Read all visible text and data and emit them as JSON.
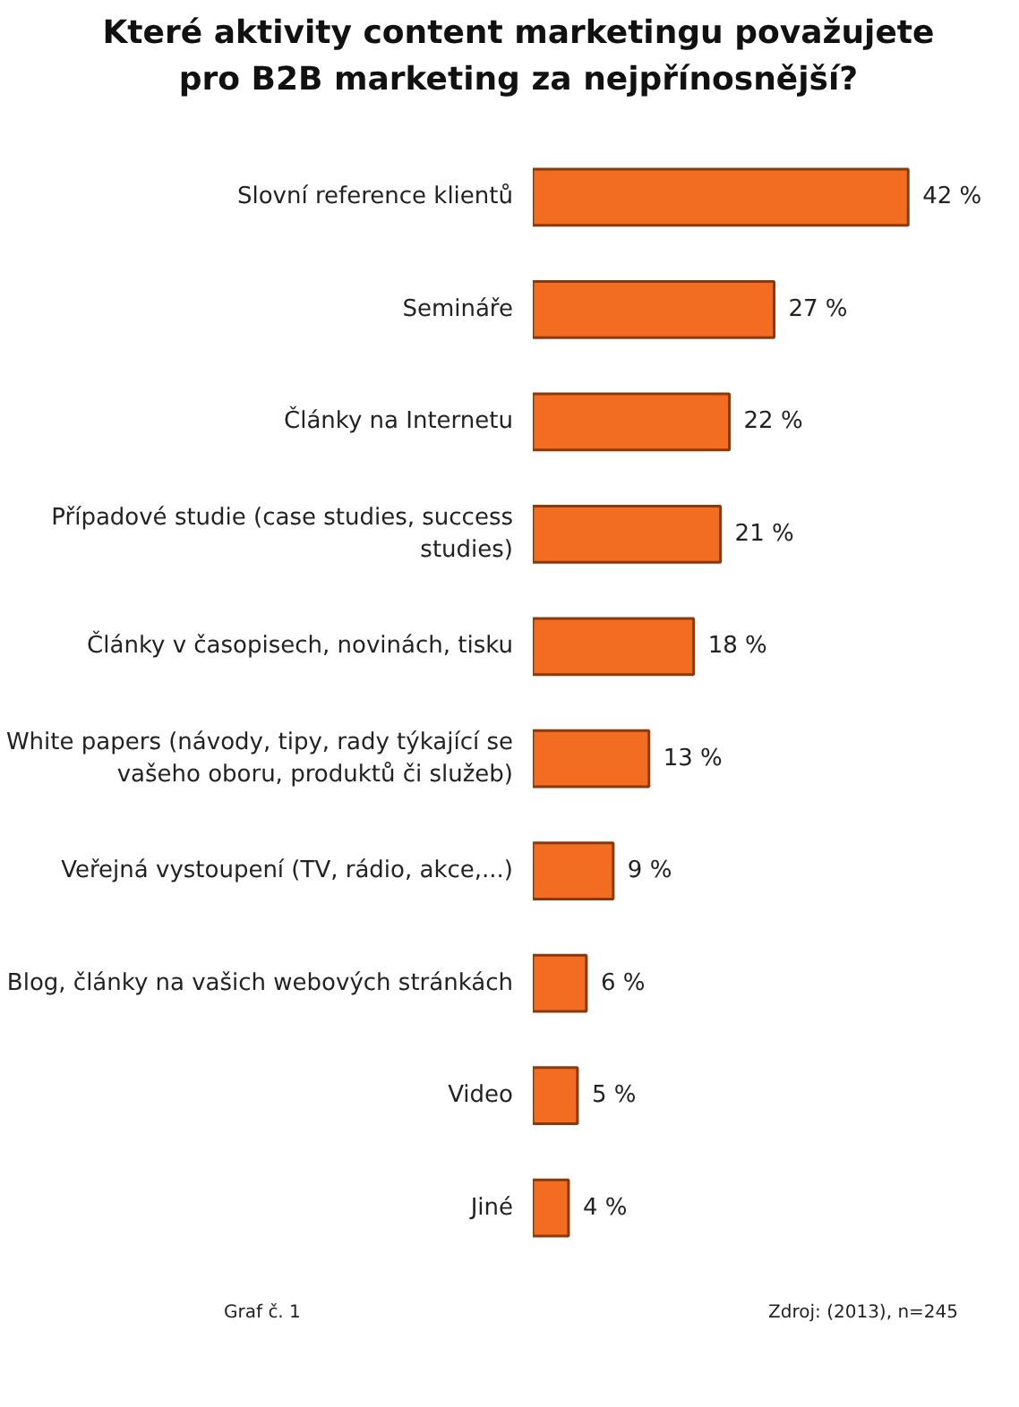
{
  "chart_data": {
    "type": "bar",
    "orientation": "horizontal",
    "title": "Které aktivity content marketingu považujete\npro B2B marketing za nejpřínosnější?",
    "categories": [
      "Slovní reference klientů",
      "Semináře",
      "Články na Internetu",
      "Případové studie (case studies, success\nstudies)",
      "Články v časopisech, novinách, tisku",
      "White papers (návody, tipy, rady týkající se\nvašeho oboru, produktů či služeb)",
      "Veřejná vystoupení (TV, rádio, akce,...)",
      "Blog, články na vašich webových stránkách",
      "Video",
      "Jiné"
    ],
    "values": [
      42,
      27,
      22,
      21,
      18,
      13,
      9,
      6,
      5,
      4
    ],
    "value_labels": [
      "42 %",
      "27 %",
      "22 %",
      "21 %",
      "18 %",
      "13 %",
      "9 %",
      "6 %",
      "5 %",
      "4 %"
    ],
    "color": "#f26d21",
    "grid": false,
    "tick_labels": "y",
    "annotations": [
      "Graf č. 1",
      "Zdroj: (2013), n=245"
    ]
  }
}
